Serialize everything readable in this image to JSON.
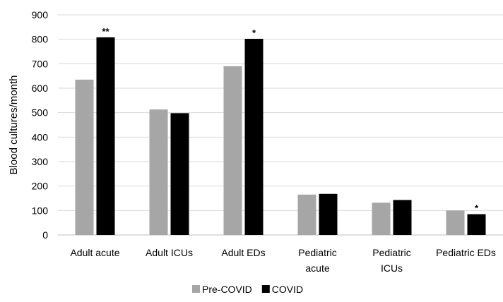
{
  "chart_data": {
    "type": "bar",
    "ylabel": "Blood cultures/month",
    "xlabel": "",
    "title": "",
    "ylim": [
      0,
      900
    ],
    "yticks": [
      0,
      100,
      200,
      300,
      400,
      500,
      600,
      700,
      800,
      900
    ],
    "grid": true,
    "legend_position": "bottom",
    "categories": [
      [
        "Adult acute"
      ],
      [
        "Adult ICUs"
      ],
      [
        "Adult EDs"
      ],
      [
        "Pediatric",
        "acute"
      ],
      [
        "Pediatric",
        "ICUs"
      ],
      [
        "Pediatric EDs"
      ]
    ],
    "series": [
      {
        "name": "Pre-COVID",
        "color": "#a6a6a6",
        "values": [
          635,
          513,
          690,
          165,
          132,
          100
        ]
      },
      {
        "name": "COVID",
        "color": "#000000",
        "values": [
          808,
          498,
          802,
          168,
          143,
          85
        ]
      }
    ],
    "annotations": [
      {
        "category_index": 0,
        "series_index": 1,
        "text": "**"
      },
      {
        "category_index": 2,
        "series_index": 1,
        "text": "*"
      },
      {
        "category_index": 5,
        "series_index": 1,
        "text": "*"
      }
    ]
  }
}
